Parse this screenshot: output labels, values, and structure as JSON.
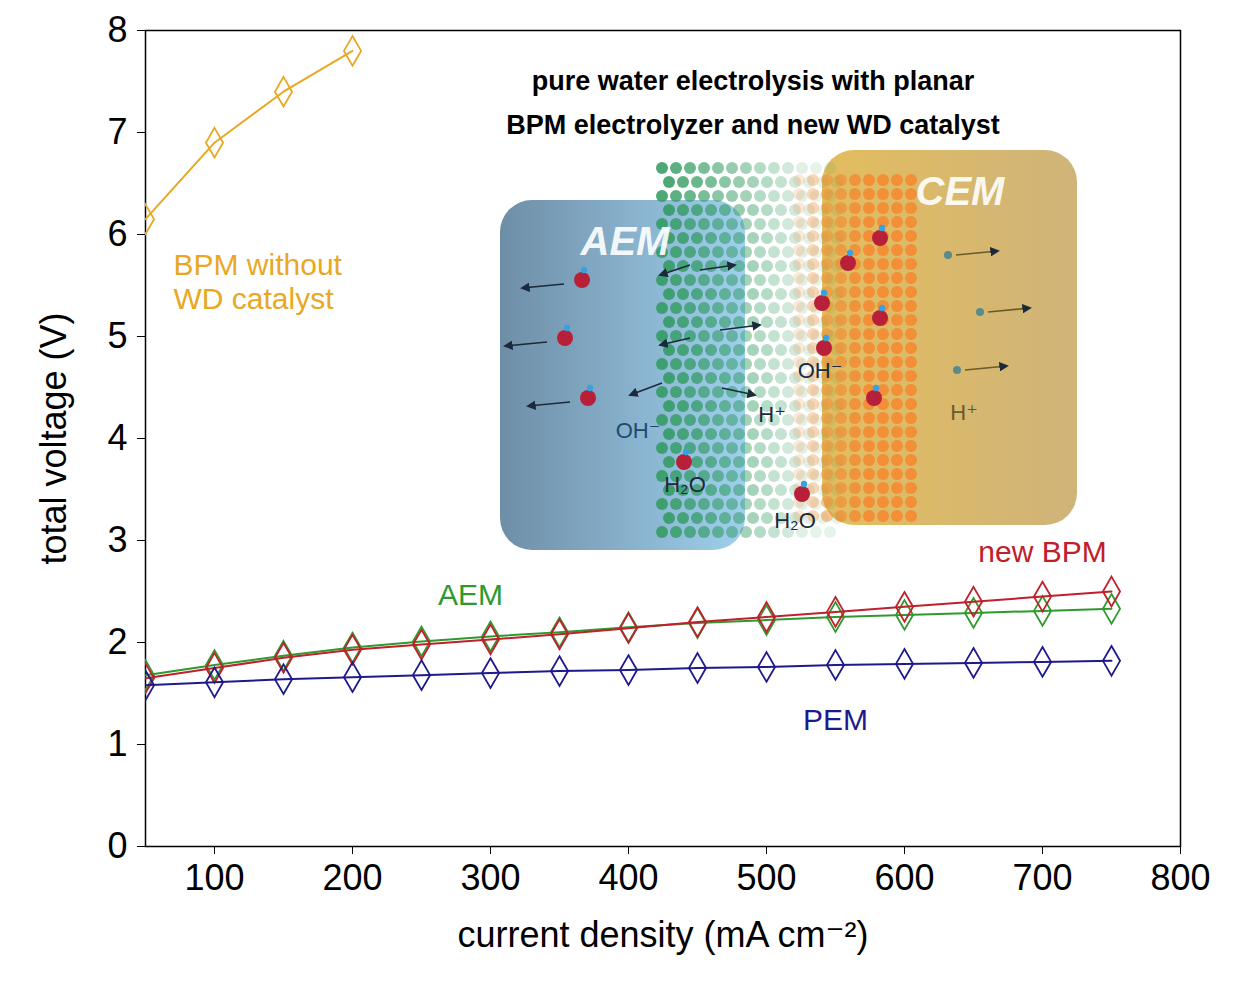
{
  "chart_data": {
    "type": "line",
    "title": "pure water electrolysis with planar BPM electrolyzer and new WD catalyst",
    "x_label": "current density (mA cm⁻²)",
    "y_label": "total voltage (V)",
    "xlim": [
      50,
      800
    ],
    "xticks": [
      100,
      200,
      300,
      400,
      500,
      600,
      700,
      800
    ],
    "ylim": [
      0,
      8
    ],
    "yticks": [
      0,
      1,
      2,
      3,
      4,
      5,
      6,
      7,
      8
    ],
    "grid": false,
    "series": [
      {
        "name": "BPM without WD catalyst",
        "color": "#e8a823",
        "marker": "diamond",
        "x": [
          50,
          100,
          150,
          200
        ],
        "values": [
          6.15,
          6.9,
          7.4,
          7.8
        ]
      },
      {
        "name": "AEM",
        "color": "#2e9a2e",
        "marker": "diamond",
        "x": [
          50,
          100,
          150,
          200,
          250,
          300,
          350,
          400,
          450,
          500,
          550,
          600,
          650,
          700,
          750
        ],
        "values": [
          1.68,
          1.78,
          1.87,
          1.95,
          2.01,
          2.06,
          2.1,
          2.15,
          2.19,
          2.22,
          2.25,
          2.27,
          2.29,
          2.31,
          2.33
        ]
      },
      {
        "name": "new BPM",
        "color": "#c0202a",
        "marker": "diamond",
        "x": [
          50,
          100,
          150,
          200,
          250,
          300,
          350,
          400,
          450,
          500,
          550,
          600,
          650,
          700,
          750
        ],
        "values": [
          1.65,
          1.75,
          1.85,
          1.93,
          1.98,
          2.03,
          2.08,
          2.14,
          2.2,
          2.25,
          2.3,
          2.35,
          2.4,
          2.45,
          2.5
        ]
      },
      {
        "name": "PEM",
        "color": "#1f1a8c",
        "marker": "diamond",
        "x": [
          50,
          100,
          150,
          200,
          250,
          300,
          350,
          400,
          450,
          500,
          550,
          600,
          650,
          700,
          750
        ],
        "values": [
          1.58,
          1.61,
          1.64,
          1.66,
          1.68,
          1.7,
          1.72,
          1.73,
          1.75,
          1.76,
          1.78,
          1.79,
          1.8,
          1.81,
          1.82
        ]
      }
    ],
    "illustration": {
      "membranes": [
        "AEM",
        "CEM"
      ],
      "labels": [
        "OH⁻",
        "H₂O",
        "H⁺",
        "H₂O",
        "OH⁻",
        "H⁺"
      ]
    }
  }
}
